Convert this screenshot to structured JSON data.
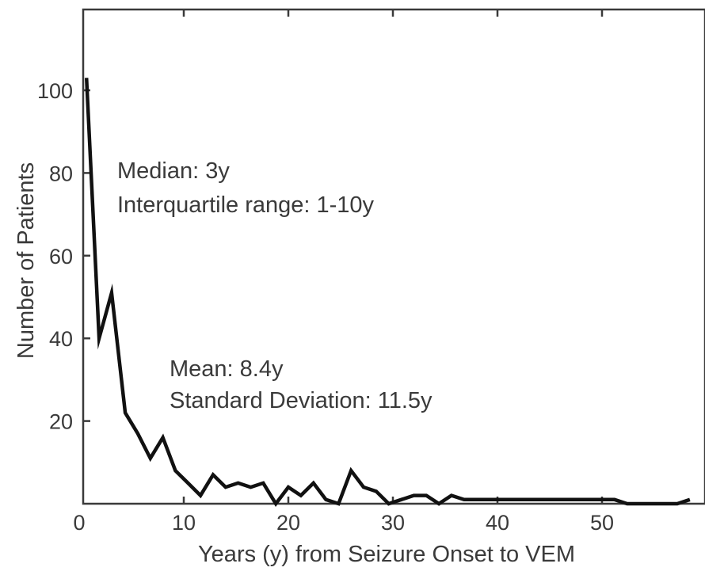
{
  "chart_data": {
    "type": "line",
    "title": "",
    "xlabel": "Years (y) from Seizure Onset to VEM",
    "ylabel": "Number of Patients",
    "xlim": [
      0,
      59
    ],
    "ylim": [
      0,
      120
    ],
    "xticks": [
      0,
      10,
      20,
      30,
      40,
      50
    ],
    "yticks": [
      20,
      40,
      60,
      80,
      100
    ],
    "xtick_labels": [
      "0",
      "10",
      "20",
      "30",
      "40",
      "50"
    ],
    "ytick_labels": [
      "20",
      "40",
      "60",
      "80",
      "100"
    ],
    "grid": false,
    "legend": "none",
    "line_color": "#111111",
    "series": [
      {
        "x": [
          0.7,
          1.9,
          3.1,
          4.4,
          5.6,
          6.8,
          8.0,
          9.2,
          10.4,
          11.6,
          12.8,
          14.0,
          15.2,
          16.4,
          17.6,
          18.8,
          20.0,
          21.2,
          22.4,
          23.6,
          24.8,
          26.0,
          27.2,
          28.4,
          29.6,
          30.8,
          32.0,
          33.2,
          34.4,
          35.6,
          36.8,
          38.0,
          39.2,
          40.4,
          41.6,
          42.8,
          44.0,
          45.2,
          46.4,
          47.6,
          48.8,
          50.0,
          51.2,
          52.4,
          53.6,
          54.8,
          56.0,
          57.2,
          58.4
        ],
        "values": [
          103,
          40,
          51,
          22,
          17,
          11,
          16,
          8,
          5,
          2,
          7,
          4,
          5,
          4,
          5,
          0,
          4,
          2,
          5,
          1,
          0,
          8,
          4,
          3,
          0,
          1,
          2,
          2,
          0,
          2,
          1,
          1,
          1,
          1,
          1,
          1,
          1,
          1,
          1,
          1,
          1,
          1,
          1,
          0,
          0,
          0,
          0,
          0,
          1
        ]
      }
    ],
    "annotations": [
      {
        "lines": [
          "Median: 3y",
          "Interquartile range: 1-10y"
        ]
      },
      {
        "lines": [
          "Mean: 8.4y",
          "Standard Deviation: 11.5y"
        ]
      }
    ]
  }
}
